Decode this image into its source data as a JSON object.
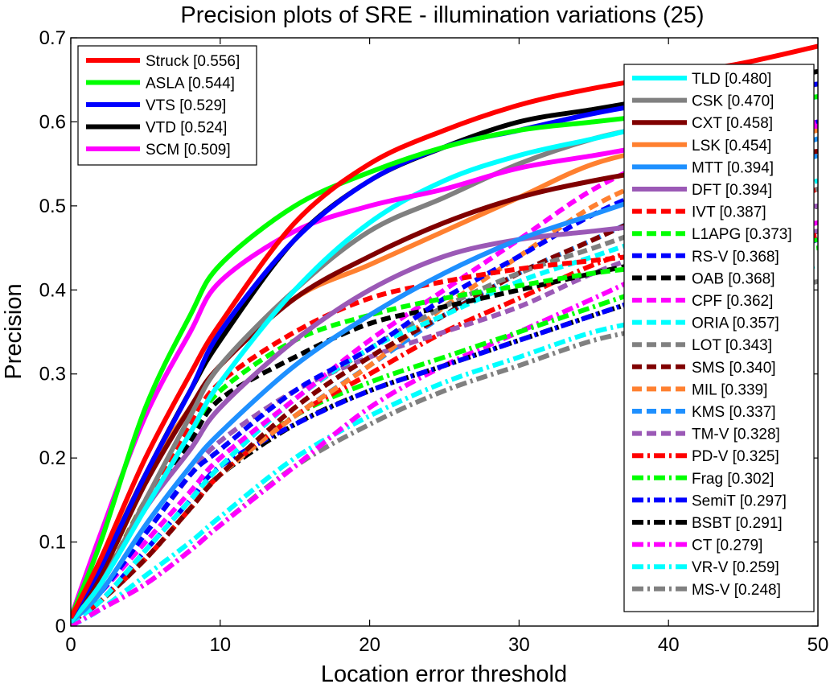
{
  "chart_data": {
    "type": "line",
    "title": "Precision plots of SRE - illumination variations (25)",
    "xlabel": "Location error threshold",
    "ylabel": "Precision",
    "xlim": [
      0,
      50
    ],
    "ylim": [
      0,
      0.7
    ],
    "xticks": [
      0,
      10,
      20,
      30,
      40,
      50
    ],
    "yticks": [
      0,
      0.1,
      0.2,
      0.3,
      0.4,
      0.5,
      0.6,
      0.7
    ],
    "x": [
      0,
      2,
      5,
      8,
      10,
      15,
      20,
      25,
      30,
      35,
      40,
      45,
      50
    ],
    "grid": false,
    "legend_placement": "top-left and top-right",
    "series": [
      {
        "name": "Struck [0.556]",
        "color": "#ff0000",
        "style": "solid",
        "legend_group": "left",
        "values": [
          0.01,
          0.08,
          0.2,
          0.3,
          0.36,
          0.48,
          0.55,
          0.59,
          0.62,
          0.64,
          0.655,
          0.67,
          0.69
        ]
      },
      {
        "name": "ASLA [0.544]",
        "color": "#00ff00",
        "style": "solid",
        "legend_group": "left",
        "values": [
          0.01,
          0.1,
          0.26,
          0.37,
          0.43,
          0.5,
          0.54,
          0.57,
          0.59,
          0.6,
          0.61,
          0.62,
          0.63
        ]
      },
      {
        "name": "VTS [0.529]",
        "color": "#0000ff",
        "style": "solid",
        "legend_group": "left",
        "values": [
          0.01,
          0.07,
          0.18,
          0.28,
          0.35,
          0.46,
          0.53,
          0.57,
          0.59,
          0.61,
          0.625,
          0.635,
          0.645
        ]
      },
      {
        "name": "VTD [0.524]",
        "color": "#000000",
        "style": "solid",
        "legend_group": "left",
        "values": [
          0.01,
          0.07,
          0.18,
          0.28,
          0.34,
          0.46,
          0.53,
          0.57,
          0.6,
          0.615,
          0.63,
          0.645,
          0.66
        ]
      },
      {
        "name": "SCM [0.509]",
        "color": "#ff00ff",
        "style": "solid",
        "legend_group": "left",
        "values": [
          0.01,
          0.11,
          0.25,
          0.35,
          0.41,
          0.47,
          0.5,
          0.52,
          0.545,
          0.56,
          0.575,
          0.585,
          0.595
        ]
      },
      {
        "name": "TLD [0.480]",
        "color": "#00ffff",
        "style": "solid",
        "legend_group": "right",
        "values": [
          0.005,
          0.05,
          0.14,
          0.23,
          0.29,
          0.4,
          0.48,
          0.53,
          0.56,
          0.58,
          0.6,
          0.615,
          0.63
        ]
      },
      {
        "name": "CSK [0.470]",
        "color": "#808080",
        "style": "solid",
        "legend_group": "right",
        "values": [
          0.005,
          0.05,
          0.15,
          0.25,
          0.31,
          0.4,
          0.47,
          0.51,
          0.55,
          0.58,
          0.6,
          0.625,
          0.645
        ]
      },
      {
        "name": "CXT [0.458]",
        "color": "#800000",
        "style": "solid",
        "legend_group": "right",
        "values": [
          0.005,
          0.06,
          0.17,
          0.26,
          0.31,
          0.39,
          0.44,
          0.48,
          0.51,
          0.53,
          0.545,
          0.555,
          0.565
        ]
      },
      {
        "name": "LSK [0.454]",
        "color": "#ff8030",
        "style": "solid",
        "legend_group": "right",
        "values": [
          0.005,
          0.07,
          0.18,
          0.26,
          0.31,
          0.39,
          0.43,
          0.47,
          0.51,
          0.55,
          0.57,
          0.58,
          0.59
        ]
      },
      {
        "name": "MTT [0.394]",
        "color": "#1e90ff",
        "style": "solid",
        "legend_group": "right",
        "values": [
          0.005,
          0.04,
          0.12,
          0.19,
          0.23,
          0.31,
          0.37,
          0.42,
          0.46,
          0.49,
          0.52,
          0.55,
          0.58
        ]
      },
      {
        "name": "DFT [0.394]",
        "color": "#9b59b6",
        "style": "solid",
        "legend_group": "right",
        "values": [
          0.005,
          0.05,
          0.14,
          0.21,
          0.26,
          0.34,
          0.4,
          0.44,
          0.46,
          0.47,
          0.48,
          0.49,
          0.5
        ]
      },
      {
        "name": "IVT [0.387]",
        "color": "#ff0000",
        "style": "dashed",
        "legend_group": "right",
        "values": [
          0.005,
          0.05,
          0.15,
          0.24,
          0.29,
          0.35,
          0.39,
          0.41,
          0.425,
          0.435,
          0.445,
          0.455,
          0.465
        ]
      },
      {
        "name": "L1APG [0.373]",
        "color": "#00ff00",
        "style": "dashed",
        "legend_group": "right",
        "values": [
          0.005,
          0.05,
          0.15,
          0.23,
          0.28,
          0.34,
          0.37,
          0.39,
          0.405,
          0.42,
          0.43,
          0.44,
          0.45
        ]
      },
      {
        "name": "RS-V [0.368]",
        "color": "#0000ff",
        "style": "dashed",
        "legend_group": "right",
        "values": [
          0.005,
          0.04,
          0.11,
          0.18,
          0.21,
          0.28,
          0.33,
          0.39,
          0.44,
          0.49,
          0.53,
          0.57,
          0.6
        ]
      },
      {
        "name": "OAB [0.368]",
        "color": "#000000",
        "style": "dashed",
        "legend_group": "right",
        "values": [
          0.005,
          0.05,
          0.14,
          0.22,
          0.27,
          0.32,
          0.36,
          0.38,
          0.4,
          0.42,
          0.44,
          0.47,
          0.5
        ]
      },
      {
        "name": "CPF [0.362]",
        "color": "#ff00ff",
        "style": "dashed",
        "legend_group": "right",
        "values": [
          0.005,
          0.04,
          0.1,
          0.16,
          0.2,
          0.27,
          0.34,
          0.4,
          0.46,
          0.52,
          0.56,
          0.58,
          0.6
        ]
      },
      {
        "name": "ORIA [0.357]",
        "color": "#00ffff",
        "style": "dashed",
        "legend_group": "right",
        "values": [
          0.005,
          0.03,
          0.09,
          0.15,
          0.19,
          0.27,
          0.33,
          0.37,
          0.41,
          0.44,
          0.47,
          0.5,
          0.53
        ]
      },
      {
        "name": "LOT [0.343]",
        "color": "#808080",
        "style": "dashed",
        "legend_group": "right",
        "values": [
          0.005,
          0.03,
          0.09,
          0.15,
          0.19,
          0.27,
          0.33,
          0.38,
          0.42,
          0.45,
          0.48,
          0.5,
          0.52
        ]
      },
      {
        "name": "SMS [0.340]",
        "color": "#800000",
        "style": "dashed",
        "legend_group": "right",
        "values": [
          0.005,
          0.03,
          0.08,
          0.14,
          0.18,
          0.26,
          0.32,
          0.37,
          0.42,
          0.46,
          0.5,
          0.54,
          0.57
        ]
      },
      {
        "name": "MIL [0.339]",
        "color": "#ff8030",
        "style": "dashed",
        "legend_group": "right",
        "values": [
          0.005,
          0.03,
          0.08,
          0.14,
          0.18,
          0.25,
          0.31,
          0.38,
          0.44,
          0.5,
          0.54,
          0.57,
          0.59
        ]
      },
      {
        "name": "KMS [0.337]",
        "color": "#1e90ff",
        "style": "dashed",
        "legend_group": "right",
        "values": [
          0.005,
          0.03,
          0.08,
          0.14,
          0.18,
          0.25,
          0.31,
          0.37,
          0.42,
          0.46,
          0.5,
          0.53,
          0.56
        ]
      },
      {
        "name": "TM-V [0.328]",
        "color": "#9b59b6",
        "style": "dashed",
        "legend_group": "right",
        "values": [
          0.005,
          0.04,
          0.11,
          0.18,
          0.22,
          0.28,
          0.32,
          0.35,
          0.38,
          0.42,
          0.45,
          0.46,
          0.47
        ]
      },
      {
        "name": "PD-V [0.325]",
        "color": "#ff0000",
        "style": "dashdot",
        "legend_group": "right",
        "values": [
          0.005,
          0.03,
          0.08,
          0.14,
          0.18,
          0.25,
          0.3,
          0.35,
          0.39,
          0.43,
          0.46,
          0.49,
          0.52
        ]
      },
      {
        "name": "Frag [0.302]",
        "color": "#00ff00",
        "style": "dashdot",
        "legend_group": "right",
        "values": [
          0.005,
          0.03,
          0.08,
          0.14,
          0.18,
          0.25,
          0.29,
          0.32,
          0.35,
          0.38,
          0.41,
          0.44,
          0.46
        ]
      },
      {
        "name": "SemiT [0.297]",
        "color": "#0000ff",
        "style": "dashdot",
        "legend_group": "right",
        "values": [
          0.005,
          0.03,
          0.09,
          0.15,
          0.19,
          0.24,
          0.28,
          0.31,
          0.34,
          0.37,
          0.4,
          0.43,
          0.46
        ]
      },
      {
        "name": "BSBT [0.291]",
        "color": "#000000",
        "style": "dashdot",
        "legend_group": "right",
        "values": [
          0.005,
          0.03,
          0.08,
          0.14,
          0.18,
          0.24,
          0.28,
          0.31,
          0.34,
          0.37,
          0.4,
          0.44,
          0.47
        ]
      },
      {
        "name": "CT [0.279]",
        "color": "#ff00ff",
        "style": "dashdot",
        "legend_group": "right",
        "values": [
          0.0,
          0.02,
          0.05,
          0.09,
          0.12,
          0.19,
          0.26,
          0.31,
          0.35,
          0.39,
          0.43,
          0.46,
          0.48
        ]
      },
      {
        "name": "VR-V [0.259]",
        "color": "#00ffff",
        "style": "dashdot",
        "legend_group": "right",
        "values": [
          0.0,
          0.02,
          0.06,
          0.1,
          0.13,
          0.2,
          0.25,
          0.29,
          0.32,
          0.35,
          0.37,
          0.4,
          0.43
        ]
      },
      {
        "name": "MS-V [0.248]",
        "color": "#808080",
        "style": "dashdot",
        "legend_group": "right",
        "values": [
          0.0,
          0.02,
          0.05,
          0.09,
          0.12,
          0.19,
          0.24,
          0.28,
          0.31,
          0.34,
          0.36,
          0.39,
          0.41
        ]
      }
    ]
  }
}
